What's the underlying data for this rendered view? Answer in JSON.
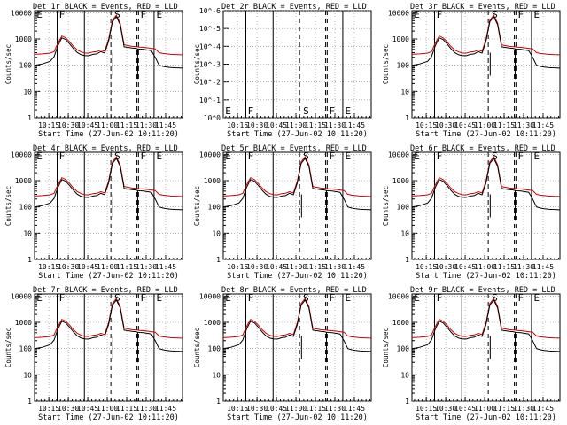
{
  "figure": {
    "start_time_label": "Start Time (27-Jun-02 10:11:20)",
    "ylabel": "Counts/sec",
    "legend": "BLACK = Events, RED = LLD",
    "colors": {
      "events": "#000000",
      "lld": "#cc0000",
      "grid": "#000000"
    }
  },
  "chart_data": [
    {
      "type": "line",
      "title": "Det 1r BLACK = Events, RED = LLD",
      "det": "1r",
      "xlabel": "Start Time (27-Jun-02 10:11:20)",
      "ylabel": "Counts/sec",
      "yscale": "log",
      "ylim": [
        1,
        12000
      ],
      "xlim_min": [
        0,
        38
      ],
      "x_tick_labels": [
        "10:15",
        "10:30",
        "10:45",
        "11:00",
        "11:15",
        "11:30",
        "11:45"
      ],
      "y_tick_labels": [
        "1",
        "10",
        "100",
        "1000",
        "10000"
      ],
      "markers": [
        "E",
        "F",
        "S",
        "F",
        "E"
      ],
      "has_data": true
    },
    {
      "type": "line",
      "title": "Det 2r BLACK = Events, RED = LLD",
      "det": "2r",
      "xlabel": "Start Time (27-Jun-02 10:11:20)",
      "ylabel": "Counts/sec",
      "yscale": "log",
      "ylim": [
        1,
        1e-06
      ],
      "xlim_min": [
        0,
        38
      ],
      "x_tick_labels": [
        "10:15",
        "10:30",
        "10:45",
        "11:00",
        "11:15",
        "11:30",
        "11:45"
      ],
      "y_tick_labels": [
        "10^0",
        "10^-1",
        "10^-2",
        "10^-3",
        "10^-4",
        "10^-5",
        "10^-6"
      ],
      "markers": [
        "E",
        "F",
        "S",
        "F",
        "E"
      ],
      "has_data": false
    },
    {
      "type": "line",
      "title": "Det 3r BLACK = Events, RED = LLD",
      "det": "3r",
      "xlabel": "Start Time (27-Jun-02 10:11:20)",
      "ylabel": "Counts/sec",
      "yscale": "log",
      "ylim": [
        1,
        12000
      ],
      "xlim_min": [
        0,
        38
      ],
      "x_tick_labels": [
        "10:15",
        "10:30",
        "10:45",
        "11:00",
        "11:15",
        "11:30",
        "11:45"
      ],
      "y_tick_labels": [
        "1",
        "10",
        "100",
        "1000",
        "10000"
      ],
      "markers": [
        "E",
        "F",
        "S",
        "F",
        "E"
      ],
      "has_data": true
    },
    {
      "type": "line",
      "title": "Det 4r BLACK = Events, RED = LLD",
      "det": "4r",
      "xlabel": "Start Time (27-Jun-02 10:11:20)",
      "ylabel": "Counts/sec",
      "yscale": "log",
      "ylim": [
        1,
        12000
      ],
      "xlim_min": [
        0,
        38
      ],
      "x_tick_labels": [
        "10:15",
        "10:30",
        "10:45",
        "11:00",
        "11:15",
        "11:30",
        "11:45"
      ],
      "y_tick_labels": [
        "1",
        "10",
        "100",
        "1000",
        "10000"
      ],
      "markers": [
        "E",
        "F",
        "S",
        "F",
        "E"
      ],
      "has_data": true
    },
    {
      "type": "line",
      "title": "Det 5r BLACK = Events, RED = LLD",
      "det": "5r",
      "xlabel": "Start Time (27-Jun-02 10:11:20)",
      "ylabel": "Counts/sec",
      "yscale": "log",
      "ylim": [
        1,
        12000
      ],
      "xlim_min": [
        0,
        38
      ],
      "x_tick_labels": [
        "10:15",
        "10:30",
        "10:45",
        "11:00",
        "11:15",
        "11:30",
        "11:45"
      ],
      "y_tick_labels": [
        "1",
        "10",
        "100",
        "1000",
        "10000"
      ],
      "markers": [
        "E",
        "F",
        "S",
        "F",
        "E"
      ],
      "has_data": true
    },
    {
      "type": "line",
      "title": "Det 6r BLACK = Events, RED = LLD",
      "det": "6r",
      "xlabel": "Start Time (27-Jun-02 10:11:20)",
      "ylabel": "Counts/sec",
      "yscale": "log",
      "ylim": [
        1,
        12000
      ],
      "xlim_min": [
        0,
        38
      ],
      "x_tick_labels": [
        "10:15",
        "10:30",
        "10:45",
        "11:00",
        "11:15",
        "11:30",
        "11:45"
      ],
      "y_tick_labels": [
        "1",
        "10",
        "100",
        "1000",
        "10000"
      ],
      "markers": [
        "E",
        "F",
        "S",
        "F",
        "E"
      ],
      "has_data": true
    },
    {
      "type": "line",
      "title": "Det 7r BLACK = Events, RED = LLD",
      "det": "7r",
      "xlabel": "Start Time (27-Jun-02 10:11:20)",
      "ylabel": "Counts/sec",
      "yscale": "log",
      "ylim": [
        1,
        12000
      ],
      "xlim_min": [
        0,
        38
      ],
      "x_tick_labels": [
        "10:15",
        "10:30",
        "10:45",
        "11:00",
        "11:15",
        "11:30",
        "11:45"
      ],
      "y_tick_labels": [
        "1",
        "10",
        "100",
        "1000",
        "10000"
      ],
      "markers": [
        "E",
        "F",
        "S",
        "F",
        "E"
      ],
      "has_data": true
    },
    {
      "type": "line",
      "title": "Det 8r BLACK = Events, RED = LLD",
      "det": "8r",
      "xlabel": "Start Time (27-Jun-02 10:11:20)",
      "ylabel": "Counts/sec",
      "yscale": "log",
      "ylim": [
        1,
        12000
      ],
      "xlim_min": [
        0,
        38
      ],
      "x_tick_labels": [
        "10:15",
        "10:30",
        "10:45",
        "11:00",
        "11:15",
        "11:30",
        "11:45"
      ],
      "y_tick_labels": [
        "1",
        "10",
        "100",
        "1000",
        "10000"
      ],
      "markers": [
        "E",
        "F",
        "S",
        "F",
        "E"
      ],
      "has_data": true
    },
    {
      "type": "line",
      "title": "Det 9r BLACK = Events, RED = LLD",
      "det": "9r",
      "xlabel": "Start Time (27-Jun-02 10:11:20)",
      "ylabel": "Counts/sec",
      "yscale": "log",
      "ylim": [
        1,
        12000
      ],
      "xlim_min": [
        0,
        38
      ],
      "x_tick_labels": [
        "10:15",
        "10:30",
        "10:45",
        "11:00",
        "11:15",
        "11:30",
        "11:45"
      ],
      "y_tick_labels": [
        "1",
        "10",
        "100",
        "1000",
        "10000"
      ],
      "markers": [
        "E",
        "F",
        "S",
        "F",
        "E"
      ],
      "has_data": true
    }
  ],
  "series": {
    "x_min": [
      0,
      2,
      4,
      5,
      6,
      7,
      8,
      9,
      10,
      11,
      12,
      13,
      14,
      15,
      16,
      17,
      18,
      19,
      20,
      21,
      22,
      23,
      24,
      25,
      26,
      26.5,
      27,
      28,
      29,
      30,
      31,
      32,
      33,
      34,
      35,
      36,
      38
    ],
    "events": [
      100,
      112,
      140,
      210,
      560,
      1100,
      950,
      650,
      430,
      300,
      250,
      230,
      230,
      260,
      270,
      330,
      290,
      800,
      4500,
      7000,
      3500,
      500,
      480,
      450,
      440,
      420,
      410,
      400,
      380,
      360,
      200,
      100,
      90,
      85,
      82,
      80,
      78
    ],
    "lld": [
      260,
      270,
      290,
      330,
      700,
      1300,
      1100,
      780,
      520,
      380,
      320,
      290,
      290,
      320,
      330,
      380,
      340,
      950,
      5200,
      8000,
      4000,
      600,
      560,
      520,
      510,
      500,
      490,
      480,
      460,
      440,
      420,
      300,
      280,
      270,
      260,
      255,
      250
    ],
    "vertical_lines": [
      {
        "x_min": 5.8,
        "style": "solid"
      },
      {
        "x_min": 12.8,
        "style": "solid"
      },
      {
        "x_min": 19.6,
        "style": "dashed"
      },
      {
        "x_min": 26.3,
        "style": "dashed"
      },
      {
        "x_min": 26.7,
        "style": "dashed"
      },
      {
        "x_min": 30.7,
        "style": "solid"
      },
      {
        "x_min": 38.0,
        "style": "solid"
      }
    ],
    "marker_x_min": [
      0.5,
      6.3,
      20.5,
      27.2,
      31.3
    ]
  }
}
